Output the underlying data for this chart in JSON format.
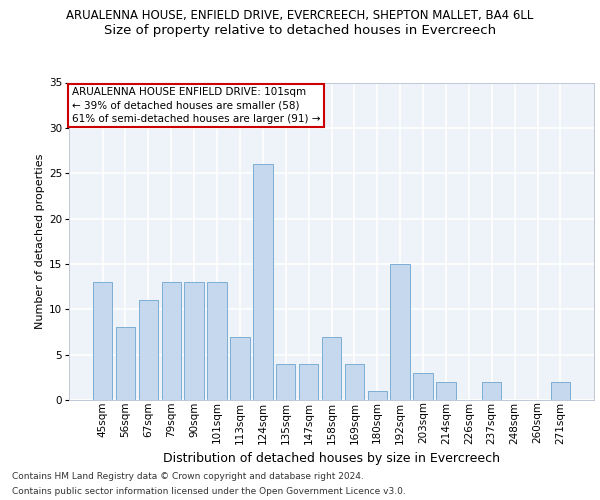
{
  "title1": "ARUALENNA HOUSE, ENFIELD DRIVE, EVERCREECH, SHEPTON MALLET, BA4 6LL",
  "title2": "Size of property relative to detached houses in Evercreech",
  "xlabel": "Distribution of detached houses by size in Evercreech",
  "ylabel": "Number of detached properties",
  "categories": [
    "45sqm",
    "56sqm",
    "67sqm",
    "79sqm",
    "90sqm",
    "101sqm",
    "113sqm",
    "124sqm",
    "135sqm",
    "147sqm",
    "158sqm",
    "169sqm",
    "180sqm",
    "192sqm",
    "203sqm",
    "214sqm",
    "226sqm",
    "237sqm",
    "248sqm",
    "260sqm",
    "271sqm"
  ],
  "values": [
    13,
    8,
    11,
    13,
    13,
    13,
    7,
    26,
    4,
    4,
    7,
    4,
    1,
    15,
    3,
    2,
    0,
    2,
    0,
    0,
    2
  ],
  "bar_color_normal": "#c5d8ed",
  "bar_edge_color": "#7bafd4",
  "ylim": [
    0,
    35
  ],
  "yticks": [
    0,
    5,
    10,
    15,
    20,
    25,
    30,
    35
  ],
  "annotation_text": "ARUALENNA HOUSE ENFIELD DRIVE: 101sqm\n← 39% of detached houses are smaller (58)\n61% of semi-detached houses are larger (91) →",
  "annotation_box_color": "#ffffff",
  "annotation_box_edge_color": "#cc0000",
  "footnote1": "Contains HM Land Registry data © Crown copyright and database right 2024.",
  "footnote2": "Contains public sector information licensed under the Open Government Licence v3.0.",
  "background_color": "#eef2f9",
  "grid_color": "#ffffff",
  "title1_fontsize": 8.5,
  "title2_fontsize": 9.5,
  "ylabel_fontsize": 8,
  "xlabel_fontsize": 9,
  "tick_fontsize": 7.5,
  "annotation_fontsize": 7.5,
  "footnote_fontsize": 6.5
}
